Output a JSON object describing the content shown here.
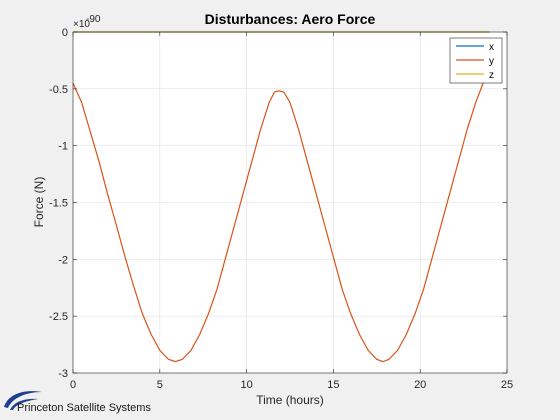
{
  "colors": {
    "x": "#0072bd",
    "y": "#d95319",
    "z": "#edb120",
    "background": "#f0f0f0",
    "plot_bg": "#ffffff",
    "grid": "#e0e0e0",
    "logo_blue": "#1f3f8f"
  },
  "logo": {
    "text": "Princeton Satellite Systems",
    "icon": "swoosh-logo-icon"
  },
  "chart_data": {
    "type": "line",
    "title": "Disturbances: Aero Force",
    "xlabel": "Time (hours)",
    "ylabel": "Force (N)",
    "xlim": [
      0,
      25
    ],
    "ylim": [
      -3,
      0
    ],
    "y_exponent_label": "×10",
    "y_exponent_power": "-90",
    "grid": true,
    "legend_placement": "top-right",
    "xticks": [
      0,
      5,
      10,
      15,
      20,
      25
    ],
    "xtick_labels": [
      "0",
      "5",
      "10",
      "15",
      "20",
      "25"
    ],
    "yticks": [
      0,
      -0.5,
      -1,
      -1.5,
      -2,
      -2.5,
      -3
    ],
    "ytick_labels": [
      "0",
      "-0.5",
      "-1",
      "-1.5",
      "-2",
      "-2.5",
      "-3"
    ],
    "series": [
      {
        "name": "x",
        "color": "#0072bd",
        "x": [
          0,
          24
        ],
        "y": [
          0,
          0
        ]
      },
      {
        "name": "y",
        "color": "#d95319",
        "x": [
          0,
          0.5,
          1,
          1.5,
          2,
          2.5,
          3,
          3.5,
          4,
          4.5,
          5,
          5.5,
          5.9,
          6.3,
          6.8,
          7.3,
          7.8,
          8.3,
          8.8,
          9.3,
          9.8,
          10.3,
          10.8,
          11.3,
          11.6,
          11.75,
          11.95,
          12.15,
          12.5,
          13,
          13.5,
          14,
          14.5,
          15,
          15.5,
          16,
          16.5,
          17,
          17.5,
          17.85,
          18.2,
          18.7,
          19.2,
          19.7,
          20.2,
          20.7,
          21.2,
          21.7,
          22.2,
          22.7,
          23.2,
          23.7,
          24
        ],
        "y": [
          -0.45,
          -0.62,
          -0.88,
          -1.14,
          -1.43,
          -1.7,
          -1.98,
          -2.24,
          -2.48,
          -2.66,
          -2.8,
          -2.88,
          -2.9,
          -2.88,
          -2.8,
          -2.66,
          -2.48,
          -2.26,
          -1.98,
          -1.7,
          -1.42,
          -1.14,
          -0.86,
          -0.62,
          -0.53,
          -0.52,
          -0.52,
          -0.53,
          -0.62,
          -0.86,
          -1.14,
          -1.42,
          -1.7,
          -1.98,
          -2.26,
          -2.48,
          -2.66,
          -2.8,
          -2.88,
          -2.9,
          -2.88,
          -2.8,
          -2.66,
          -2.48,
          -2.26,
          -1.98,
          -1.7,
          -1.42,
          -1.14,
          -0.86,
          -0.62,
          -0.42,
          -0.28
        ]
      },
      {
        "name": "z",
        "color": "#edb120",
        "x": [
          0,
          24
        ],
        "y": [
          0,
          0
        ]
      }
    ]
  }
}
